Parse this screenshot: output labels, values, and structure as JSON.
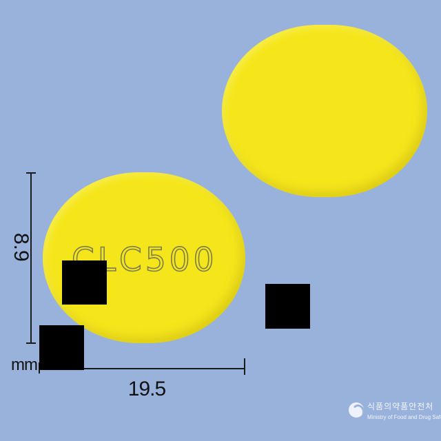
{
  "image": {
    "background_color": "#98b2dc",
    "tablet_color": "#f5e61c",
    "imprint_text": "CLC500",
    "dimensions": {
      "height_label": "8.9",
      "width_label": "19.5",
      "unit": "mm"
    },
    "watermark": {
      "icon": "ministry-swirl-icon",
      "korean_text": "식품의약품안전처",
      "english_text": "Ministry of Food and Drug Safety"
    }
  }
}
